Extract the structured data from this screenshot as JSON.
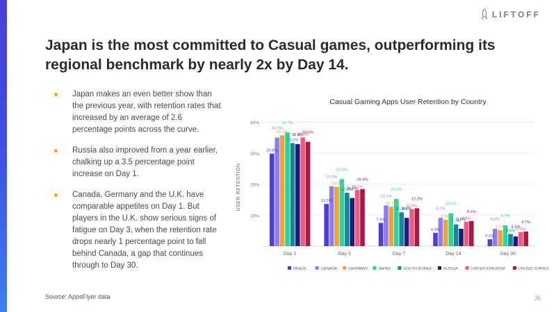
{
  "brand": {
    "logo_text": "LIFTOFF"
  },
  "headline": "Japan is the most committed to Casual games, outperforming its regional benchmark by nearly 2x by Day 14.",
  "bullets": [
    "Japan makes an even better show than the previous year, with retention rates that increased by an average of 2.6 percentage points across the curve.",
    "Russia also improved from a year earlier, chalking up a 3.5 percentage point increase on Day 1.",
    "Canada, Germany and the U.K. have comparable appetites on Day 1. But players in the U.K. show serious signs of fatigue on Day 3, when the retention rate drops nearly 1 percentage point to fall behind Canada, a gap that continues through to Day 30."
  ],
  "source": "Source: AppsFlyer data",
  "page_number": "26",
  "colors": {
    "accent_bar": "#4a3fd6",
    "bullet": "#f2a800"
  },
  "chart_data": {
    "type": "bar",
    "title": "Casual Gaming Apps User Retention by Country",
    "ylabel": "USER RETENTION",
    "xlabel": "",
    "ylim": [
      0,
      40
    ],
    "yticks": [
      10,
      20,
      30,
      40
    ],
    "ytick_labels": [
      "10%",
      "20%",
      "30%",
      "40%"
    ],
    "categories": [
      "Day 1",
      "Day 3",
      "Day 7",
      "Day 14",
      "Day 30"
    ],
    "legend_position": "bottom",
    "series": [
      {
        "name": "BRAZIL",
        "color": "#4b3fd8",
        "values": [
          29.8,
          13.6,
          7.5,
          4.3,
          2.2
        ],
        "labels": [
          "29.8%",
          "13.6%",
          "7.5%",
          "4.3%",
          "2.2%"
        ]
      },
      {
        "name": "CANADA",
        "color": "#8c7ef0",
        "values": [
          35.0,
          19.3,
          13.1,
          9.1,
          5.6
        ],
        "labels": [
          "35.0%",
          "19.3%",
          "13.1%",
          "9.1%",
          "5.6%"
        ]
      },
      {
        "name": "GERMANY",
        "color": "#f0a23a",
        "values": [
          35.7,
          19.1,
          12.7,
          8.5,
          5.1
        ],
        "labels": [
          "35.7%",
          "19.1%",
          "12.7%",
          "8.5%",
          "5.1%"
        ]
      },
      {
        "name": "JAPAN",
        "color": "#2fd49a",
        "values": [
          36.7,
          21.6,
          15.2,
          10.6,
          6.7
        ],
        "labels": [
          "36.7%",
          "21.6%",
          "15.2%",
          "10.6%",
          "6.7%"
        ]
      },
      {
        "name": "SOUTH KOREA",
        "color": "#13899a",
        "values": [
          33.2,
          17.2,
          10.9,
          7.0,
          3.9
        ],
        "labels": [
          "33.2%",
          "17.2%",
          "10.9%",
          "7.0%",
          "3.9%"
        ]
      },
      {
        "name": "RUSSIA",
        "color": "#1b1d7e",
        "values": [
          32.9,
          15.5,
          9.1,
          5.6,
          3.1
        ],
        "labels": [
          "32.9%",
          "15.5%",
          "9.1%",
          "5.6%",
          "3.1%"
        ]
      },
      {
        "name": "UNITED KINGDOM",
        "color": "#f05a7e",
        "values": [
          35.0,
          18.1,
          11.9,
          7.9,
          4.5
        ],
        "labels": [
          "35.0%",
          "18.1%",
          "11.9%",
          "7.9%",
          "4.5%"
        ]
      },
      {
        "name": "UNITED STATES",
        "color": "#b01642",
        "values": [
          33.6,
          18.4,
          12.2,
          8.1,
          4.7
        ],
        "labels": [
          "33.6%",
          "18.4%",
          "12.2%",
          "8.1%",
          "4.7%"
        ]
      }
    ]
  }
}
